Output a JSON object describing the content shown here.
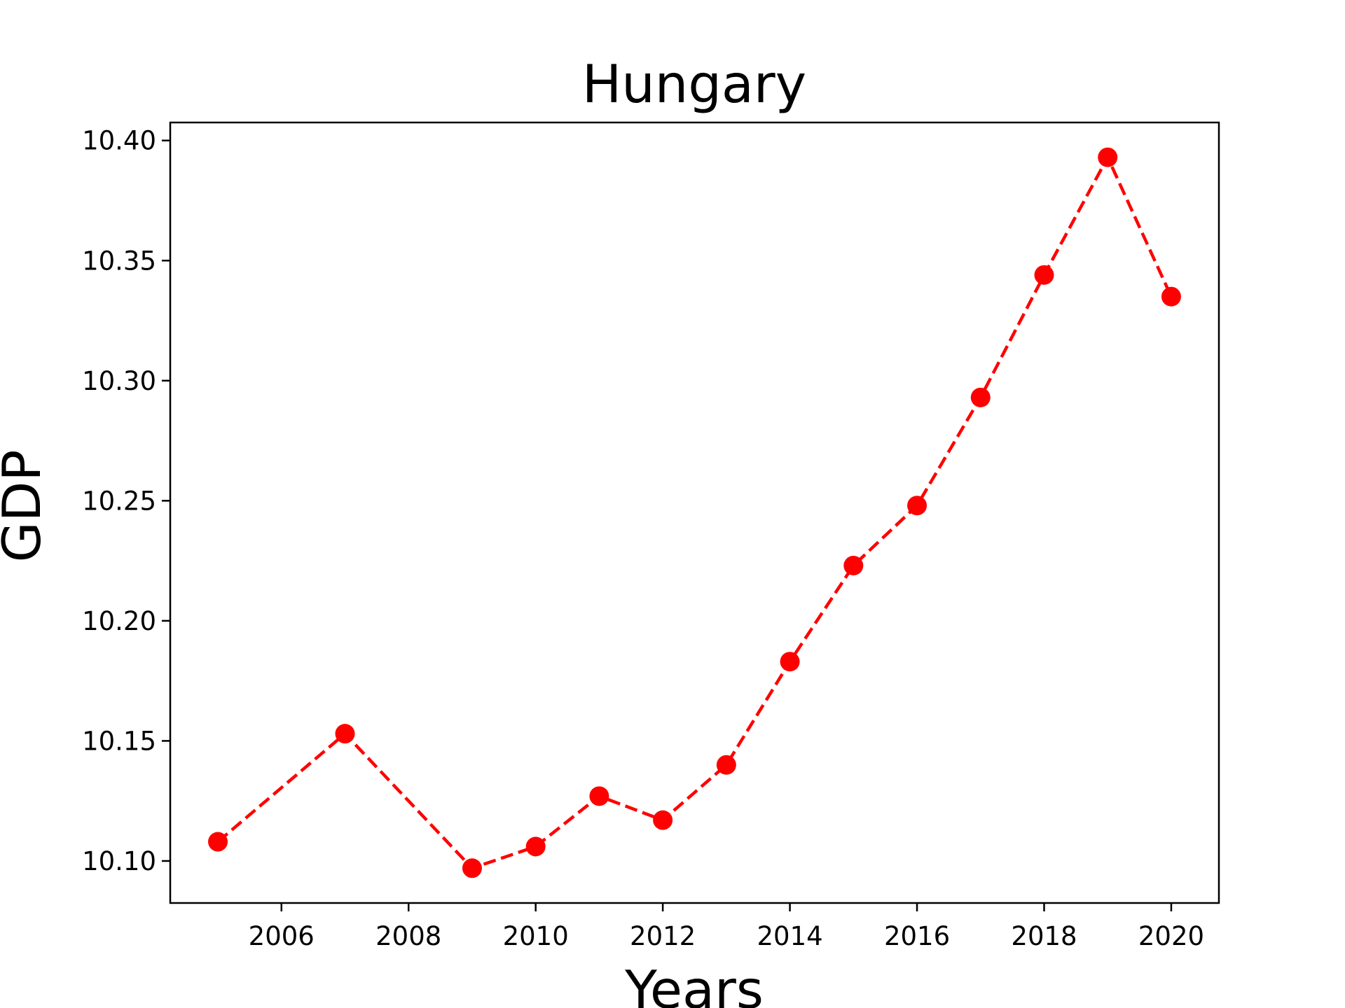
{
  "chart_data": {
    "type": "line",
    "title": "Hungary",
    "xlabel": "Years",
    "ylabel": "GDP",
    "xlim": [
      2004.25,
      2020.75
    ],
    "ylim": [
      10.0825,
      10.4075
    ],
    "xticks": [
      2006,
      2008,
      2010,
      2012,
      2014,
      2016,
      2018,
      2020
    ],
    "yticks": [
      10.1,
      10.15,
      10.2,
      10.25,
      10.3,
      10.35,
      10.4
    ],
    "grid": false,
    "series": [
      {
        "color": "#ff0000",
        "line_style": "dashed",
        "marker": "circle",
        "x": [
          2005,
          2007,
          2009,
          2010,
          2011,
          2012,
          2013,
          2014,
          2015,
          2016,
          2017,
          2018,
          2019,
          2020
        ],
        "y": [
          10.108,
          10.153,
          10.097,
          10.106,
          10.127,
          10.117,
          10.14,
          10.183,
          10.223,
          10.248,
          10.293,
          10.344,
          10.393,
          10.335
        ]
      }
    ]
  }
}
